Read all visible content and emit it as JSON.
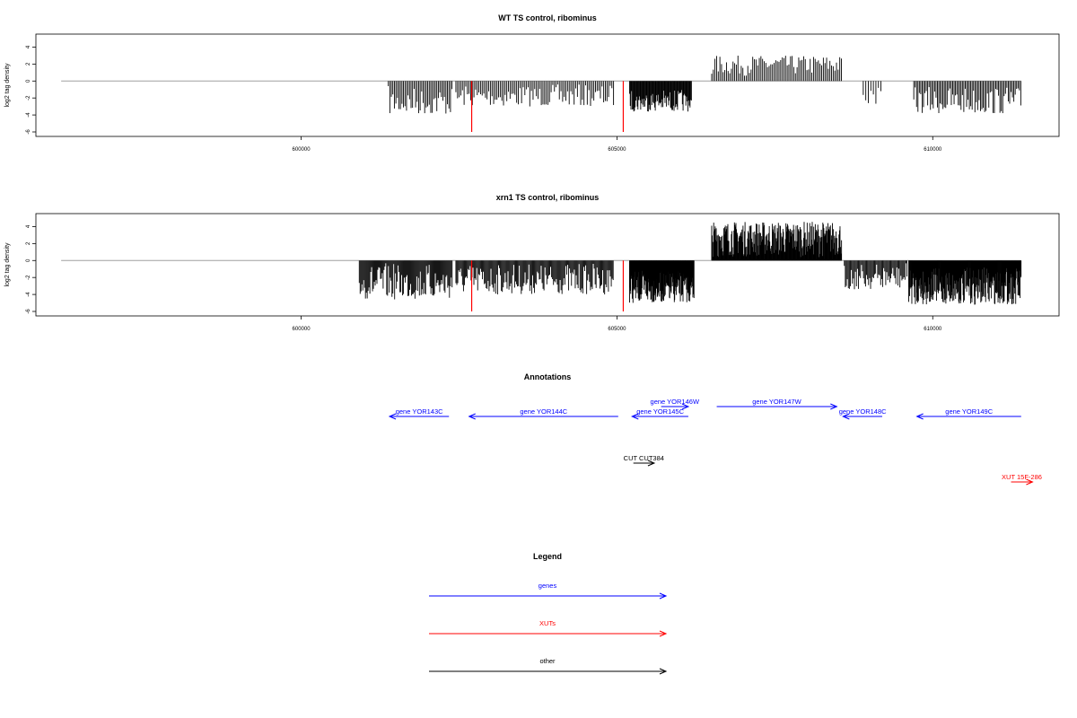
{
  "chart_data": [
    {
      "type": "bar",
      "title": "WT TS control, ribominus",
      "ylabel": "log2 tag density",
      "xlim": [
        595800,
        612000
      ],
      "ylim": [
        -6,
        5
      ],
      "yticks": [
        -6,
        -4,
        -2,
        0,
        2,
        4
      ],
      "xticks": [
        600000,
        605000,
        610000
      ],
      "xtick_labels": [
        "600000",
        "605000",
        "610000"
      ],
      "baseline": {
        "from": 596200,
        "to": 611400,
        "color": "#a0a0a0"
      },
      "bar_color": "#000000",
      "highlight_color": "#ff0000",
      "highlights": [
        {
          "x": 602700,
          "value": -6
        },
        {
          "x": 605100,
          "value": -6
        }
      ],
      "regions": [
        {
          "from": 601380,
          "to": 602400,
          "step": 24,
          "min": -4.0,
          "max": -0.6
        },
        {
          "from": 602450,
          "to": 604950,
          "step": 26,
          "min": -3.0,
          "max": -0.4
        },
        {
          "from": 605200,
          "to": 606180,
          "step": 11,
          "min": -3.6,
          "max": -1.0
        },
        {
          "from": 606500,
          "to": 608560,
          "step": 26,
          "min": 0.6,
          "max": 3.0
        },
        {
          "from": 608900,
          "to": 609200,
          "step": 40,
          "min": -2.8,
          "max": -0.8
        },
        {
          "from": 609700,
          "to": 611400,
          "step": 22,
          "min": -3.9,
          "max": -0.6
        }
      ]
    },
    {
      "type": "bar",
      "title": "xrn1 TS control, ribominus",
      "ylabel": "log2 tag density",
      "xlim": [
        595800,
        612000
      ],
      "ylim": [
        -6,
        5
      ],
      "yticks": [
        -6,
        -4,
        -2,
        0,
        2,
        4
      ],
      "xticks": [
        600000,
        605000,
        610000
      ],
      "xtick_labels": [
        "600000",
        "605000",
        "610000"
      ],
      "baseline": {
        "from": 596200,
        "to": 611400,
        "color": "#a0a0a0"
      },
      "bar_color": "#000000",
      "highlight_color": "#ff0000",
      "highlights": [
        {
          "x": 602700,
          "value": -6
        },
        {
          "x": 605100,
          "value": -6
        }
      ],
      "regions": [
        {
          "from": 600920,
          "to": 602400,
          "step": 14,
          "min": -4.6,
          "max": -0.3
        },
        {
          "from": 602450,
          "to": 604950,
          "step": 15,
          "min": -4.0,
          "max": -0.3
        },
        {
          "from": 605200,
          "to": 606220,
          "step": 6,
          "min": -5.0,
          "max": -1.2
        },
        {
          "from": 606500,
          "to": 608560,
          "step": 8,
          "min": 0.4,
          "max": 4.6
        },
        {
          "from": 608600,
          "to": 609600,
          "step": 16,
          "min": -3.4,
          "max": -0.3
        },
        {
          "from": 609620,
          "to": 611400,
          "step": 7,
          "min": -5.2,
          "max": -0.8
        }
      ]
    }
  ],
  "annotations": {
    "title": "Annotations",
    "items": [
      {
        "name": "gene YOR143C",
        "category": "genes",
        "from": 601400,
        "to": 602340,
        "strand": "-",
        "row": 1
      },
      {
        "name": "gene YOR144C",
        "category": "genes",
        "from": 602660,
        "to": 605020,
        "strand": "-",
        "row": 1
      },
      {
        "name": "gene YOR145C",
        "category": "genes",
        "from": 605240,
        "to": 606130,
        "strand": "-",
        "row": 1
      },
      {
        "name": "gene YOR146W",
        "category": "genes",
        "from": 605700,
        "to": 606130,
        "strand": "+",
        "row": 0
      },
      {
        "name": "gene YOR147W",
        "category": "genes",
        "from": 606580,
        "to": 608480,
        "strand": "+",
        "row": 0
      },
      {
        "name": "gene YOR148C",
        "category": "genes",
        "from": 608580,
        "to": 609200,
        "strand": "-",
        "row": 1
      },
      {
        "name": "gene YOR149C",
        "category": "genes",
        "from": 609750,
        "to": 611400,
        "strand": "-",
        "row": 1
      },
      {
        "name": "CUT CUT384",
        "category": "other",
        "from": 605260,
        "to": 605590,
        "strand": "+",
        "row": 2
      },
      {
        "name": "XUT 15F-286",
        "category": "XUTs",
        "from": 611240,
        "to": 611580,
        "strand": "+",
        "row": 3
      }
    ]
  },
  "legend": {
    "title": "Legend",
    "items": [
      {
        "label": "genes",
        "color": "#0000ff"
      },
      {
        "label": "XUTs",
        "color": "#ff0000"
      },
      {
        "label": "other",
        "color": "#000000"
      }
    ]
  },
  "colors": {
    "genes": "#0000ff",
    "XUTs": "#ff0000",
    "other": "#000000"
  }
}
